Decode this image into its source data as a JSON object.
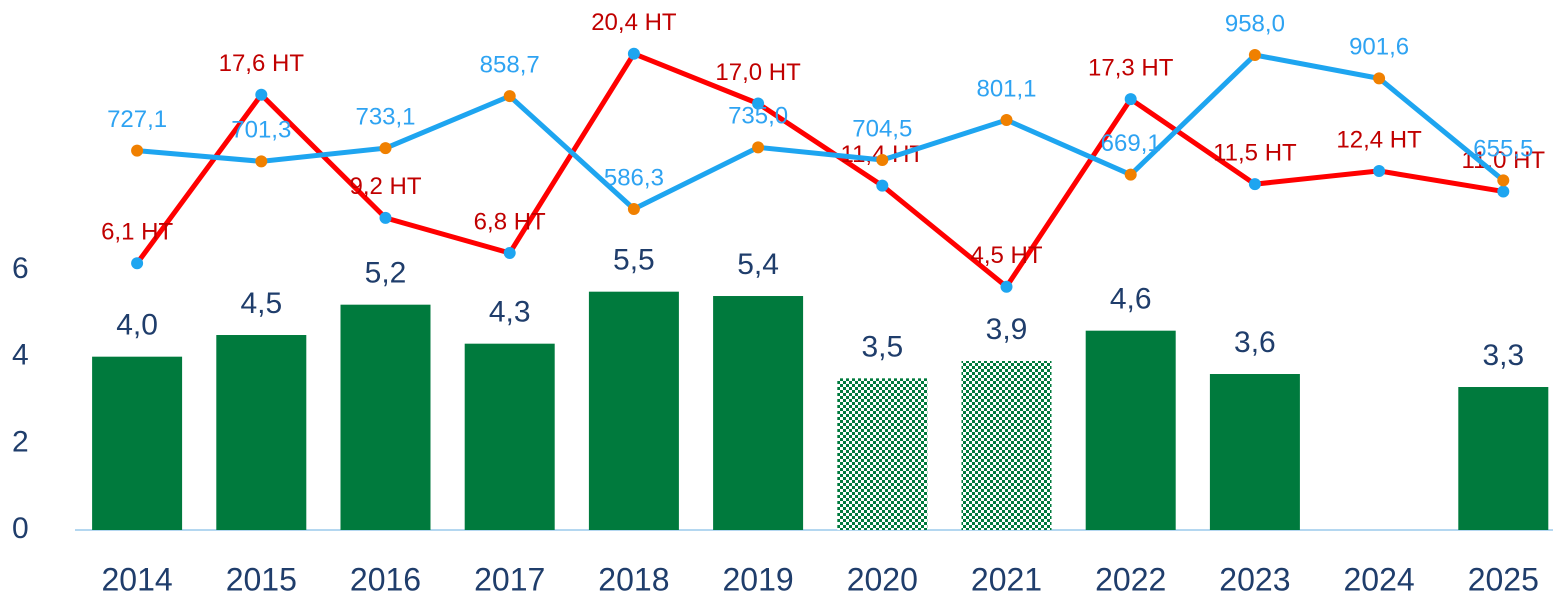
{
  "chart_data": {
    "type": "bar",
    "categories": [
      "2014",
      "2015",
      "2016",
      "2017",
      "2018",
      "2019",
      "2020",
      "2021",
      "2022",
      "2023",
      "2024",
      "2025"
    ],
    "ylim": [
      0,
      11.77
    ],
    "yticks": [
      0,
      2,
      4,
      6
    ],
    "y2lim": [
      -12.1,
      22.7
    ],
    "y3lim": [
      -188.6,
      1042.5
    ],
    "series": [
      {
        "name": null,
        "type": "bar",
        "color": "#007a3d",
        "values": [
          4.0,
          4.5,
          5.2,
          4.3,
          5.5,
          5.4,
          3.5,
          3.9,
          4.6,
          3.6,
          null,
          3.3
        ],
        "value_labels": [
          "4,0",
          "4,5",
          "5,2",
          "4,3",
          "5,5",
          "5,4",
          "3,5",
          "3,9",
          "4,6",
          "3,6",
          null,
          "3,3"
        ],
        "patterned": [
          false,
          false,
          false,
          false,
          false,
          false,
          true,
          true,
          false,
          false,
          false,
          false
        ]
      },
      {
        "name": null,
        "type": "line",
        "axis": "y2",
        "color": "#ff0000",
        "marker_color": "#1ea5f0",
        "label_color": "#c00000",
        "values": [
          6.1,
          17.6,
          9.2,
          6.8,
          20.4,
          17.0,
          11.4,
          4.5,
          17.3,
          11.5,
          12.4,
          11.0
        ],
        "value_labels": [
          "6,1 HT",
          "17,6 HT",
          "9,2 HT",
          "6,8 HT",
          "20,4 HT",
          "17,0 HT",
          "11,4 HT",
          "4,5 HT",
          "17,3 HT",
          "11,5 HT",
          "12,4 HT",
          "11,0 HT"
        ]
      },
      {
        "name": null,
        "type": "line",
        "axis": "y3",
        "color": "#1ea5f0",
        "marker_color": "#f08000",
        "label_color": "#2ea3f2",
        "values": [
          727.1,
          701.3,
          733.1,
          858.7,
          586.3,
          735.0,
          704.5,
          801.1,
          669.1,
          958.0,
          901.6,
          655.5
        ],
        "value_labels": [
          "727,1",
          "701,3",
          "733,1",
          "858,7",
          "586,3",
          "735,0",
          "704,5",
          "801,1",
          "669,1",
          "958,0",
          "901,6",
          "655,5"
        ]
      }
    ]
  }
}
